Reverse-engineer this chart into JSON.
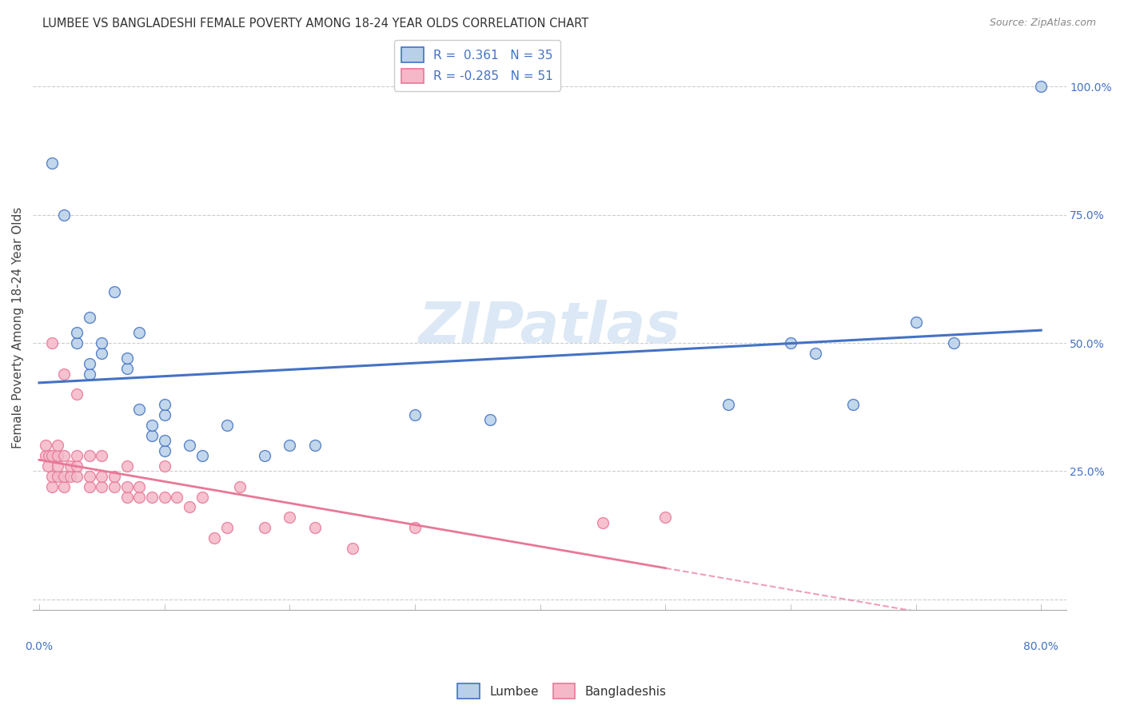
{
  "title": "LUMBEE VS BANGLADESHI FEMALE POVERTY AMONG 18-24 YEAR OLDS CORRELATION CHART",
  "source": "Source: ZipAtlas.com",
  "ylabel": "Female Poverty Among 18-24 Year Olds",
  "lumbee_R": 0.361,
  "lumbee_N": 35,
  "bangladeshi_R": -0.285,
  "bangladeshi_N": 51,
  "lumbee_color": "#b8d0e8",
  "bangladeshi_color": "#f5b8c8",
  "lumbee_line_color": "#4472c4",
  "bangladeshi_line_color": "#e87898",
  "watermark_color": "#dce8f5",
  "lumbee_x": [
    0.01,
    0.02,
    0.03,
    0.03,
    0.04,
    0.04,
    0.04,
    0.05,
    0.05,
    0.06,
    0.07,
    0.07,
    0.08,
    0.08,
    0.09,
    0.09,
    0.1,
    0.1,
    0.1,
    0.1,
    0.12,
    0.13,
    0.15,
    0.18,
    0.2,
    0.22,
    0.3,
    0.36,
    0.55,
    0.6,
    0.62,
    0.65,
    0.7,
    0.73,
    0.8
  ],
  "lumbee_y": [
    0.85,
    0.75,
    0.5,
    0.52,
    0.44,
    0.46,
    0.55,
    0.48,
    0.5,
    0.6,
    0.45,
    0.47,
    0.37,
    0.52,
    0.32,
    0.34,
    0.29,
    0.31,
    0.36,
    0.38,
    0.3,
    0.28,
    0.34,
    0.28,
    0.3,
    0.3,
    0.36,
    0.35,
    0.38,
    0.5,
    0.48,
    0.38,
    0.54,
    0.5,
    1.0
  ],
  "bangladeshi_x": [
    0.005,
    0.005,
    0.007,
    0.008,
    0.01,
    0.01,
    0.01,
    0.01,
    0.015,
    0.015,
    0.015,
    0.015,
    0.02,
    0.02,
    0.02,
    0.02,
    0.025,
    0.025,
    0.03,
    0.03,
    0.03,
    0.03,
    0.04,
    0.04,
    0.04,
    0.05,
    0.05,
    0.05,
    0.06,
    0.06,
    0.07,
    0.07,
    0.07,
    0.08,
    0.08,
    0.09,
    0.1,
    0.1,
    0.11,
    0.12,
    0.13,
    0.14,
    0.15,
    0.16,
    0.18,
    0.2,
    0.22,
    0.25,
    0.3,
    0.45,
    0.5
  ],
  "bangladeshi_y": [
    0.28,
    0.3,
    0.26,
    0.28,
    0.22,
    0.24,
    0.28,
    0.5,
    0.24,
    0.26,
    0.28,
    0.3,
    0.22,
    0.24,
    0.28,
    0.44,
    0.24,
    0.26,
    0.24,
    0.26,
    0.28,
    0.4,
    0.22,
    0.24,
    0.28,
    0.22,
    0.24,
    0.28,
    0.22,
    0.24,
    0.2,
    0.22,
    0.26,
    0.2,
    0.22,
    0.2,
    0.2,
    0.26,
    0.2,
    0.18,
    0.2,
    0.12,
    0.14,
    0.22,
    0.14,
    0.16,
    0.14,
    0.1,
    0.14,
    0.15,
    0.16
  ],
  "xlim": [
    -0.005,
    0.82
  ],
  "ylim": [
    -0.02,
    1.08
  ],
  "xline_solid_end": 0.5,
  "right_yticks": [
    0.25,
    0.5,
    0.75,
    1.0
  ],
  "right_yticklabels": [
    "25.0%",
    "50.0%",
    "75.0%",
    "100.0%"
  ]
}
